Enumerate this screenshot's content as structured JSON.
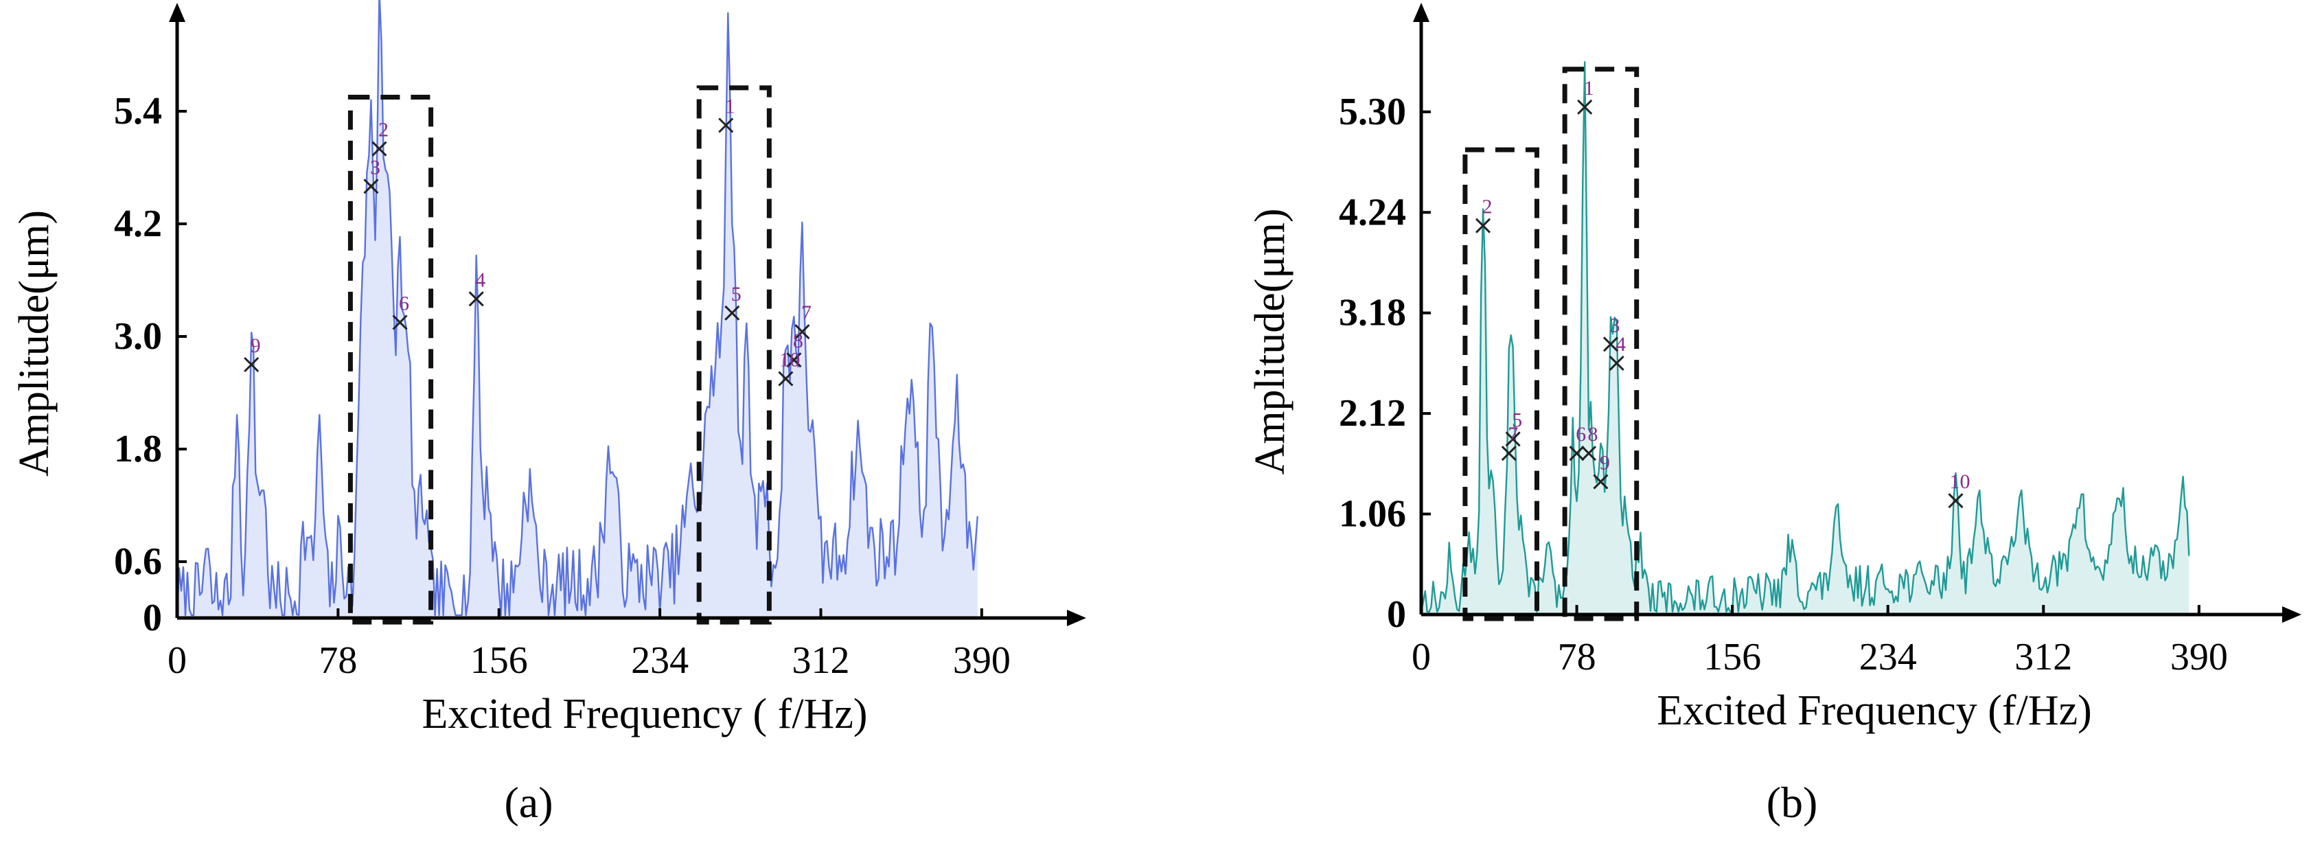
{
  "figure": {
    "panel_labels": [
      "(a)",
      "(b)"
    ]
  },
  "chart_data": [
    {
      "type": "line",
      "panel": "(a)",
      "xlabel": "Excited Frequency ( f/Hz)",
      "ylabel": "Amplitude(μm)",
      "xlim": [
        0,
        420
      ],
      "ylim": [
        0,
        6.0
      ],
      "x_ticks": [
        0,
        78,
        156,
        234,
        312,
        390
      ],
      "x_tick_labels": [
        "0",
        "78",
        "156",
        "234",
        "312",
        "390"
      ],
      "y_ticks": [
        0,
        0.6,
        1.8,
        3.0,
        4.2,
        5.4
      ],
      "y_tick_labels": [
        "0",
        "0.6",
        "1.8",
        "3.0",
        "4.2",
        "5.4"
      ],
      "grid": false,
      "legend": "none",
      "series_color": "#5a72e0",
      "fill_color": "#c9d3f5",
      "noise": {
        "base": 0.2,
        "tail": 0.8,
        "amp": 0.4,
        "seed": 7,
        "start": 0,
        "end": 388
      },
      "peaks": [
        [
          14,
          0.45,
          1.2
        ],
        [
          29,
          2.0,
          1.5
        ],
        [
          36,
          2.7,
          1.5
        ],
        [
          41,
          1.3,
          2
        ],
        [
          62,
          0.7,
          2
        ],
        [
          69,
          1.7,
          1.8
        ],
        [
          79,
          0.6,
          2
        ],
        [
          90,
          3.5,
          2
        ],
        [
          94,
          4.65,
          1.6
        ],
        [
          98,
          5.05,
          1.3
        ],
        [
          101,
          3.6,
          2
        ],
        [
          104,
          2.2,
          2
        ],
        [
          108,
          3.15,
          1.5
        ],
        [
          112,
          2.5,
          2
        ],
        [
          119,
          1.1,
          2
        ],
        [
          145,
          3.4,
          1.3
        ],
        [
          150,
          1.2,
          2.5
        ],
        [
          170,
          1.1,
          3
        ],
        [
          210,
          1.3,
          3
        ],
        [
          250,
          0.9,
          4
        ],
        [
          258,
          1.8,
          2
        ],
        [
          263,
          2.4,
          2
        ],
        [
          267,
          5.2,
          1.2
        ],
        [
          270,
          3.3,
          1.5
        ],
        [
          276,
          2.2,
          2
        ],
        [
          284,
          1.0,
          2
        ],
        [
          295,
          2.55,
          1.4
        ],
        [
          299,
          2.75,
          1.4
        ],
        [
          303,
          3.05,
          1.4
        ],
        [
          307,
          1.5,
          2
        ],
        [
          330,
          1.2,
          3
        ],
        [
          355,
          1.8,
          3
        ],
        [
          366,
          2.35,
          2
        ],
        [
          378,
          1.4,
          2.5
        ]
      ],
      "markers": [
        {
          "label": "1",
          "x": 266,
          "y": 5.25
        },
        {
          "label": "2",
          "x": 98,
          "y": 5.0
        },
        {
          "label": "3",
          "x": 94,
          "y": 4.6
        },
        {
          "label": "4",
          "x": 145,
          "y": 3.4
        },
        {
          "label": "5",
          "x": 269,
          "y": 3.25
        },
        {
          "label": "6",
          "x": 108,
          "y": 3.15
        },
        {
          "label": "7",
          "x": 303,
          "y": 3.05
        },
        {
          "label": "8",
          "x": 299,
          "y": 2.75
        },
        {
          "label": "9",
          "x": 36,
          "y": 2.7
        },
        {
          "label": "10",
          "x": 295,
          "y": 2.55
        }
      ],
      "boxes": [
        {
          "x0": 84,
          "x1": 123,
          "y0": 0,
          "y1": 5.55
        },
        {
          "x0": 253,
          "x1": 287,
          "y0": 0,
          "y1": 5.65
        }
      ]
    },
    {
      "type": "line",
      "panel": "(b)",
      "xlabel": "Excited Frequency (f/Hz)",
      "ylabel": "Amplitude(μm)",
      "xlim": [
        0,
        420
      ],
      "ylim": [
        0,
        5.9
      ],
      "x_ticks": [
        0,
        78,
        156,
        234,
        312,
        390
      ],
      "x_tick_labels": [
        "0",
        "78",
        "156",
        "234",
        "312",
        "390"
      ],
      "y_ticks": [
        0,
        1.06,
        2.12,
        3.18,
        4.24,
        5.3
      ],
      "y_tick_labels": [
        "0",
        "1.06",
        "2.12",
        "3.18",
        "4.24",
        "5.30"
      ],
      "grid": false,
      "legend": "none",
      "series_color": "#1f9a96",
      "fill_color": "#bfe4e2",
      "noise": {
        "base": 0.15,
        "tail": 0.55,
        "amp": 0.22,
        "seed": 13,
        "start": 0,
        "end": 385
      },
      "peaks": [
        [
          14,
          0.4,
          1.2
        ],
        [
          24,
          0.7,
          2
        ],
        [
          31,
          4.15,
          1.2
        ],
        [
          35,
          1.3,
          2
        ],
        [
          44,
          1.75,
          1.5
        ],
        [
          46,
          1.95,
          1.4
        ],
        [
          50,
          0.8,
          2
        ],
        [
          63,
          0.6,
          2
        ],
        [
          76,
          1.7,
          1.2
        ],
        [
          80,
          1.6,
          1.2
        ],
        [
          82,
          5.4,
          1.0
        ],
        [
          85,
          1.7,
          1.2
        ],
        [
          88,
          1.3,
          1.5
        ],
        [
          91,
          1.4,
          1.2
        ],
        [
          95,
          2.85,
          1.3
        ],
        [
          98,
          2.65,
          1.3
        ],
        [
          103,
          1.0,
          2
        ],
        [
          110,
          0.5,
          2
        ],
        [
          185,
          0.45,
          2
        ],
        [
          208,
          0.75,
          2
        ],
        [
          268,
          1.1,
          1.5
        ],
        [
          280,
          0.75,
          3
        ],
        [
          300,
          0.7,
          3
        ],
        [
          330,
          0.75,
          3
        ],
        [
          350,
          0.85,
          2.5
        ],
        [
          382,
          0.95,
          1.5
        ]
      ],
      "markers": [
        {
          "label": "1",
          "x": 82,
          "y": 5.35
        },
        {
          "label": "2",
          "x": 31,
          "y": 4.1
        },
        {
          "label": "3",
          "x": 95,
          "y": 2.85
        },
        {
          "label": "4",
          "x": 98,
          "y": 2.65
        },
        {
          "label": "5",
          "x": 46,
          "y": 1.85
        },
        {
          "label": "6",
          "x": 78,
          "y": 1.7
        },
        {
          "label": "7",
          "x": 44,
          "y": 1.7
        },
        {
          "label": "8",
          "x": 84,
          "y": 1.7
        },
        {
          "label": "9",
          "x": 90,
          "y": 1.4
        },
        {
          "label": "10",
          "x": 268,
          "y": 1.2
        }
      ],
      "boxes": [
        {
          "x0": 22,
          "x1": 58,
          "y0": 0,
          "y1": 4.9
        },
        {
          "x0": 72,
          "x1": 108,
          "y0": 0,
          "y1": 5.75
        }
      ]
    }
  ]
}
